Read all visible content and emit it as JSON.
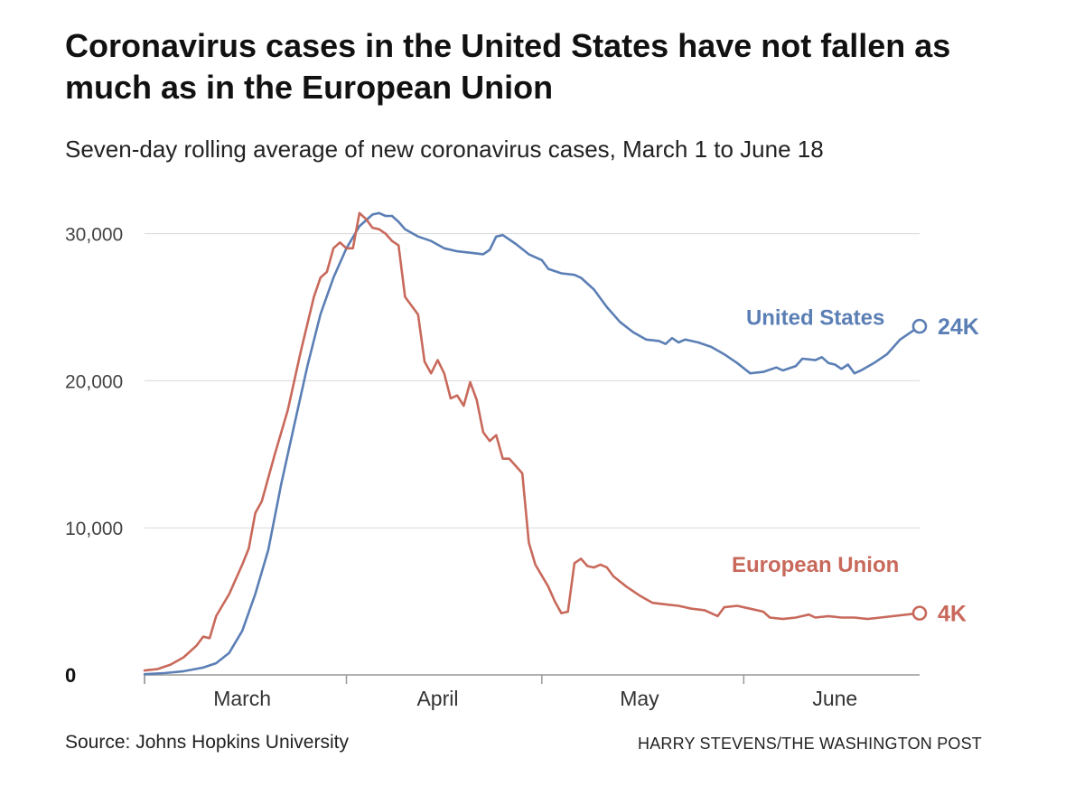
{
  "header": {
    "title": "Coronavirus cases in the United States have not fallen as much as in the European Union",
    "subtitle": "Seven-day rolling average of new coronavirus cases, March 1 to June 18"
  },
  "footer": {
    "source": "Source: Johns Hopkins University",
    "credit": "HARRY STEVENS/THE WASHINGTON POST"
  },
  "chart_data": {
    "type": "line",
    "x_start": "2020-03-01",
    "x_end": "2020-06-18",
    "ylim": [
      0,
      32000
    ],
    "y_ticks": [
      {
        "value": 0,
        "label": "0"
      },
      {
        "value": 10000,
        "label": "10,000"
      },
      {
        "value": 20000,
        "label": "20,000"
      },
      {
        "value": 30000,
        "label": "30,000"
      }
    ],
    "x_ticks": [
      {
        "date": "2020-03-16",
        "label": "March"
      },
      {
        "date": "2020-04-15",
        "label": "April"
      },
      {
        "date": "2020-05-16",
        "label": "May"
      },
      {
        "date": "2020-06-15",
        "label": "June"
      }
    ],
    "x_tick_marks": [
      "2020-03-01",
      "2020-04-01",
      "2020-05-01",
      "2020-06-01"
    ],
    "grid": true,
    "series": [
      {
        "name": "United States",
        "color": "#5b7fb5",
        "end_label": "24K",
        "points": [
          [
            "2020-03-01",
            50
          ],
          [
            "2020-03-04",
            120
          ],
          [
            "2020-03-07",
            250
          ],
          [
            "2020-03-10",
            500
          ],
          [
            "2020-03-12",
            800
          ],
          [
            "2020-03-14",
            1500
          ],
          [
            "2020-03-16",
            3000
          ],
          [
            "2020-03-18",
            5500
          ],
          [
            "2020-03-20",
            8500
          ],
          [
            "2020-03-22",
            13000
          ],
          [
            "2020-03-24",
            17000
          ],
          [
            "2020-03-26",
            21000
          ],
          [
            "2020-03-28",
            24500
          ],
          [
            "2020-03-30",
            27000
          ],
          [
            "2020-04-01",
            29000
          ],
          [
            "2020-04-03",
            30500
          ],
          [
            "2020-04-05",
            31300
          ],
          [
            "2020-04-06",
            31400
          ],
          [
            "2020-04-07",
            31200
          ],
          [
            "2020-04-08",
            31200
          ],
          [
            "2020-04-09",
            30800
          ],
          [
            "2020-04-10",
            30300
          ],
          [
            "2020-04-12",
            29800
          ],
          [
            "2020-04-14",
            29500
          ],
          [
            "2020-04-16",
            29000
          ],
          [
            "2020-04-18",
            28800
          ],
          [
            "2020-04-20",
            28700
          ],
          [
            "2020-04-22",
            28600
          ],
          [
            "2020-04-23",
            28900
          ],
          [
            "2020-04-24",
            29800
          ],
          [
            "2020-04-25",
            29900
          ],
          [
            "2020-04-27",
            29300
          ],
          [
            "2020-04-29",
            28600
          ],
          [
            "2020-05-01",
            28200
          ],
          [
            "2020-05-02",
            27600
          ],
          [
            "2020-05-04",
            27300
          ],
          [
            "2020-05-06",
            27200
          ],
          [
            "2020-05-07",
            27000
          ],
          [
            "2020-05-09",
            26200
          ],
          [
            "2020-05-11",
            25000
          ],
          [
            "2020-05-13",
            24000
          ],
          [
            "2020-05-15",
            23300
          ],
          [
            "2020-05-17",
            22800
          ],
          [
            "2020-05-19",
            22700
          ],
          [
            "2020-05-20",
            22500
          ],
          [
            "2020-05-21",
            22900
          ],
          [
            "2020-05-22",
            22600
          ],
          [
            "2020-05-23",
            22800
          ],
          [
            "2020-05-25",
            22600
          ],
          [
            "2020-05-27",
            22300
          ],
          [
            "2020-05-29",
            21800
          ],
          [
            "2020-05-31",
            21200
          ],
          [
            "2020-06-02",
            20500
          ],
          [
            "2020-06-04",
            20600
          ],
          [
            "2020-06-06",
            20900
          ],
          [
            "2020-06-07",
            20700
          ],
          [
            "2020-06-09",
            21000
          ],
          [
            "2020-06-10",
            21500
          ],
          [
            "2020-06-12",
            21400
          ],
          [
            "2020-06-13",
            21600
          ],
          [
            "2020-06-14",
            21200
          ],
          [
            "2020-06-15",
            21100
          ],
          [
            "2020-06-16",
            20800
          ],
          [
            "2020-06-17",
            21100
          ],
          [
            "2020-06-18",
            20500
          ],
          [
            "2020-06-19",
            20700
          ],
          [
            "2020-06-21",
            21200
          ],
          [
            "2020-06-23",
            21800
          ],
          [
            "2020-06-25",
            22800
          ],
          [
            "2020-06-28",
            23700
          ]
        ]
      },
      {
        "name": "European Union",
        "color": "#c8695b",
        "end_label": "4K",
        "points": [
          [
            "2020-03-01",
            300
          ],
          [
            "2020-03-03",
            400
          ],
          [
            "2020-03-05",
            700
          ],
          [
            "2020-03-07",
            1200
          ],
          [
            "2020-03-09",
            2000
          ],
          [
            "2020-03-10",
            2600
          ],
          [
            "2020-03-11",
            2500
          ],
          [
            "2020-03-12",
            4000
          ],
          [
            "2020-03-14",
            5500
          ],
          [
            "2020-03-16",
            7500
          ],
          [
            "2020-03-17",
            8600
          ],
          [
            "2020-03-18",
            11000
          ],
          [
            "2020-03-19",
            11800
          ],
          [
            "2020-03-21",
            15000
          ],
          [
            "2020-03-23",
            18000
          ],
          [
            "2020-03-25",
            22000
          ],
          [
            "2020-03-27",
            25700
          ],
          [
            "2020-03-28",
            27000
          ],
          [
            "2020-03-29",
            27400
          ],
          [
            "2020-03-30",
            29000
          ],
          [
            "2020-03-31",
            29400
          ],
          [
            "2020-04-01",
            29000
          ],
          [
            "2020-04-02",
            29000
          ],
          [
            "2020-04-03",
            31400
          ],
          [
            "2020-04-04",
            31000
          ],
          [
            "2020-04-05",
            30400
          ],
          [
            "2020-04-06",
            30300
          ],
          [
            "2020-04-07",
            30000
          ],
          [
            "2020-04-08",
            29500
          ],
          [
            "2020-04-09",
            29200
          ],
          [
            "2020-04-10",
            25700
          ],
          [
            "2020-04-12",
            24500
          ],
          [
            "2020-04-13",
            21300
          ],
          [
            "2020-04-14",
            20500
          ],
          [
            "2020-04-15",
            21400
          ],
          [
            "2020-04-16",
            20500
          ],
          [
            "2020-04-17",
            18800
          ],
          [
            "2020-04-18",
            19000
          ],
          [
            "2020-04-19",
            18300
          ],
          [
            "2020-04-20",
            19900
          ],
          [
            "2020-04-21",
            18700
          ],
          [
            "2020-04-22",
            16500
          ],
          [
            "2020-04-23",
            15900
          ],
          [
            "2020-04-24",
            16300
          ],
          [
            "2020-04-25",
            14700
          ],
          [
            "2020-04-26",
            14700
          ],
          [
            "2020-04-27",
            14200
          ],
          [
            "2020-04-28",
            13700
          ],
          [
            "2020-04-29",
            9000
          ],
          [
            "2020-04-30",
            7500
          ],
          [
            "2020-05-02",
            6000
          ],
          [
            "2020-05-03",
            5000
          ],
          [
            "2020-05-04",
            4200
          ],
          [
            "2020-05-05",
            4300
          ],
          [
            "2020-05-06",
            7600
          ],
          [
            "2020-05-07",
            7900
          ],
          [
            "2020-05-08",
            7400
          ],
          [
            "2020-05-09",
            7300
          ],
          [
            "2020-05-10",
            7500
          ],
          [
            "2020-05-11",
            7300
          ],
          [
            "2020-05-12",
            6700
          ],
          [
            "2020-05-14",
            6000
          ],
          [
            "2020-05-16",
            5400
          ],
          [
            "2020-05-18",
            4900
          ],
          [
            "2020-05-20",
            4800
          ],
          [
            "2020-05-22",
            4700
          ],
          [
            "2020-05-24",
            4500
          ],
          [
            "2020-05-26",
            4400
          ],
          [
            "2020-05-28",
            4000
          ],
          [
            "2020-05-29",
            4600
          ],
          [
            "2020-05-31",
            4700
          ],
          [
            "2020-06-02",
            4500
          ],
          [
            "2020-06-04",
            4300
          ],
          [
            "2020-06-05",
            3900
          ],
          [
            "2020-06-07",
            3800
          ],
          [
            "2020-06-09",
            3900
          ],
          [
            "2020-06-11",
            4100
          ],
          [
            "2020-06-12",
            3900
          ],
          [
            "2020-06-14",
            4000
          ],
          [
            "2020-06-16",
            3900
          ],
          [
            "2020-06-18",
            3900
          ],
          [
            "2020-06-20",
            3800
          ],
          [
            "2020-06-22",
            3900
          ],
          [
            "2020-06-28",
            4200
          ]
        ]
      }
    ]
  }
}
